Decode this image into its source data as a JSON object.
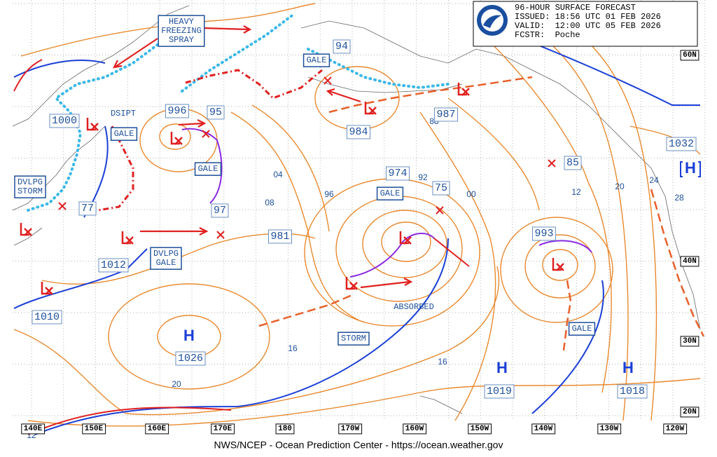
{
  "header": {
    "lines": [
      "96-HOUR SURFACE FORECAST",
      "ISSUED: 18:56 UTC 01 FEB 2026",
      "VALID:  12:00 UTC 05 FEB 2026",
      "FCSTR:  Poche"
    ]
  },
  "footer": "NWS/NCEP - Ocean Prediction Center - https://ocean.weather.gov",
  "latitude_labels": [
    "60N",
    "40N",
    "30N",
    "20N"
  ],
  "longitude_labels": [
    "140E",
    "150E",
    "160E",
    "170E",
    "180",
    "170W",
    "160W",
    "150W",
    "140W",
    "130W",
    "120W"
  ],
  "pressure_labels": [
    "1000",
    "996",
    "95",
    "97",
    "77",
    "1012",
    "1010",
    "94",
    "984",
    "987",
    "974",
    "75",
    "981",
    "993",
    "85",
    "1032",
    "1026",
    "1019",
    "1018"
  ],
  "isobar_labels": [
    "88",
    "04",
    "08",
    "96",
    "92",
    "00",
    "12",
    "20",
    "24",
    "28",
    "16",
    "16",
    "20",
    "12"
  ],
  "boxed_labels": {
    "heavy_freezing_spray": [
      "HEAVY",
      "FREEZING",
      "SPRAY"
    ],
    "gale_1": "GALE",
    "dsipt": "DSIPT",
    "gale_2": "GALE",
    "gale_3": "GALE",
    "dvlpg_storm": [
      "DVLPG",
      "STORM"
    ],
    "gale_4": "GALE",
    "dvlpg_gale": [
      "DVLPG",
      "GALE"
    ],
    "absorbed": "ABSORBED",
    "storm": "STORM",
    "gale_5": "GALE"
  },
  "highs": [
    "H",
    "H",
    "H",
    "H"
  ]
}
